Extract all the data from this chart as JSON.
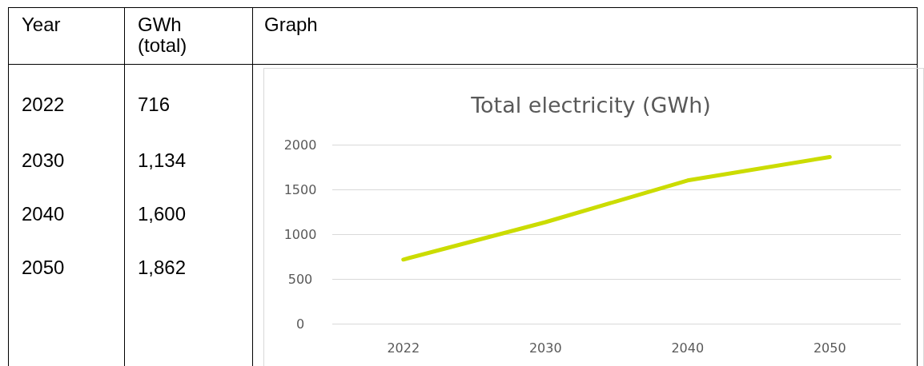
{
  "chart_data": {
    "type": "line",
    "title": "Total electricity (GWh)",
    "annotations": [
      "Year",
      "GWh (total)",
      "Graph",
      "716",
      "1,134",
      "1,600",
      "1,862"
    ],
    "categories": [
      "2022",
      "2030",
      "2040",
      "2050"
    ],
    "values": [
      716,
      1134,
      1600,
      1862
    ],
    "color": "#cbdc00",
    "ylim": [
      0,
      2000
    ],
    "yticks": [
      0,
      500,
      1000,
      1500,
      2000
    ],
    "grid": "y"
  }
}
